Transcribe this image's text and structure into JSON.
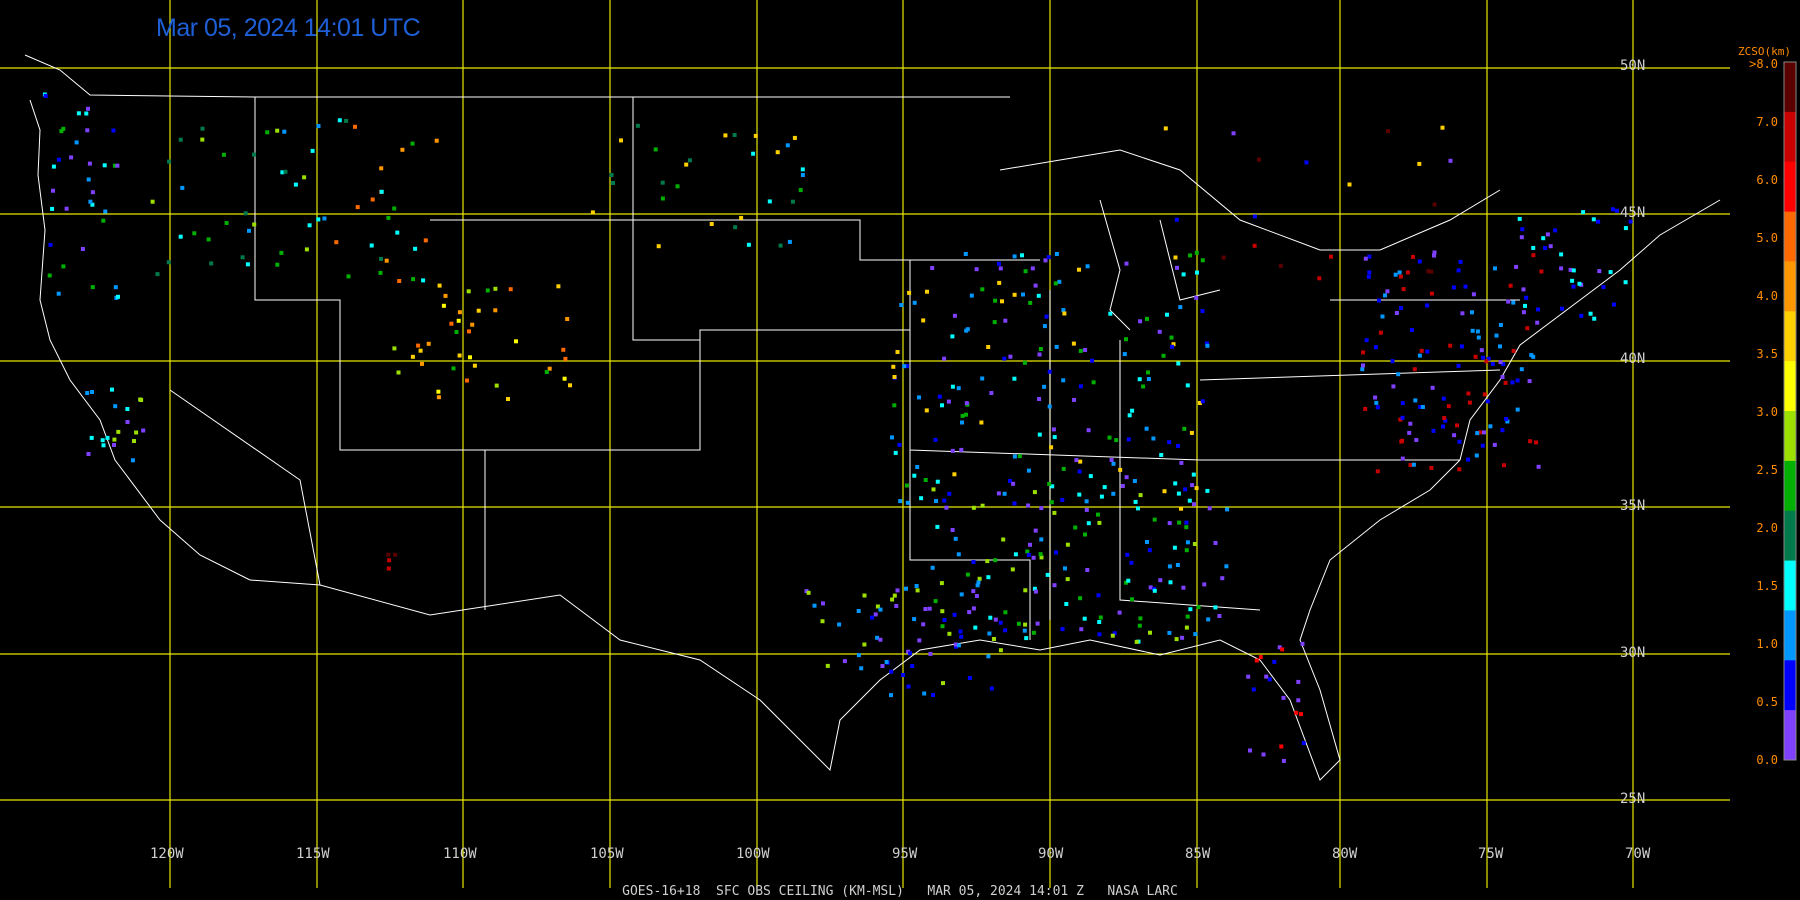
{
  "timestamp": "Mar 05, 2024 14:01 UTC",
  "footer": "GOES-16+18  SFC OBS CEILING (KM-MSL)   MAR 05, 2024 14:01 Z   NASA LARC",
  "lat_labels": [
    "50N",
    "45N",
    "40N",
    "35N",
    "30N",
    "25N"
  ],
  "lon_labels": [
    "120W",
    "115W",
    "110W",
    "105W",
    "100W",
    "95W",
    "90W",
    "85W",
    "80W",
    "75W",
    "70W"
  ],
  "colorbar": {
    "title": "ZCSO(km)",
    "ticks": [
      ">8.0",
      "7.0",
      "6.0",
      "5.0",
      "4.0",
      "3.5",
      "3.0",
      "2.5",
      "2.0",
      "1.5",
      "1.0",
      "0.5",
      "0.0"
    ],
    "colors": [
      "#5a0000",
      "#c80000",
      "#ff0000",
      "#ff6a00",
      "#ff9800",
      "#ffd000",
      "#ffff00",
      "#9be000",
      "#00b000",
      "#007a4a",
      "#00ffff",
      "#0098ff",
      "#0000ff",
      "#8040ff"
    ]
  },
  "colors": {
    "grid": "#e6e600",
    "boundary": "#ffffff",
    "timestamp": "#1e5fd8",
    "label": "#cfcfcf",
    "colorbar_text": "#ff8c00"
  }
}
